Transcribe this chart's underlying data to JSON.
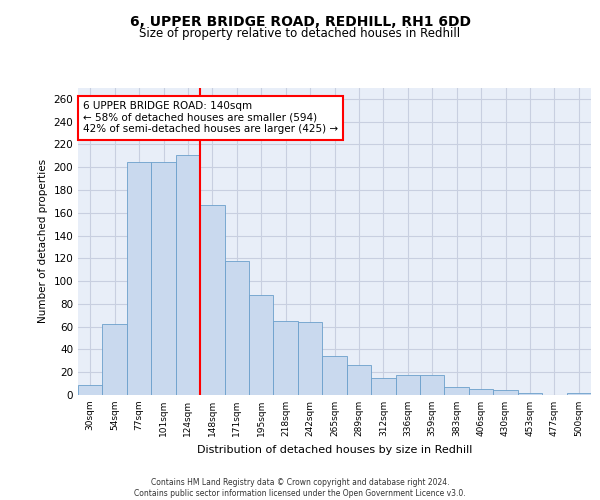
{
  "title": "6, UPPER BRIDGE ROAD, REDHILL, RH1 6DD",
  "subtitle": "Size of property relative to detached houses in Redhill",
  "xlabel": "Distribution of detached houses by size in Redhill",
  "ylabel": "Number of detached properties",
  "bar_color": "#c9d9ee",
  "bar_edge_color": "#6b9fcb",
  "background_color": "#e8eef8",
  "grid_color": "#c8cfe0",
  "vline_color": "red",
  "vline_bin_index": 5,
  "annotation_text": "6 UPPER BRIDGE ROAD: 140sqm\n← 58% of detached houses are smaller (594)\n42% of semi-detached houses are larger (425) →",
  "footer": "Contains HM Land Registry data © Crown copyright and database right 2024.\nContains public sector information licensed under the Open Government Licence v3.0.",
  "categories": [
    "30sqm",
    "54sqm",
    "77sqm",
    "101sqm",
    "124sqm",
    "148sqm",
    "171sqm",
    "195sqm",
    "218sqm",
    "242sqm",
    "265sqm",
    "289sqm",
    "312sqm",
    "336sqm",
    "359sqm",
    "383sqm",
    "406sqm",
    "430sqm",
    "453sqm",
    "477sqm",
    "500sqm"
  ],
  "values": [
    9,
    62,
    205,
    205,
    211,
    167,
    118,
    88,
    65,
    64,
    34,
    26,
    15,
    18,
    18,
    7,
    5,
    4,
    2,
    0,
    2
  ],
  "ylim": [
    0,
    270
  ],
  "yticks": [
    0,
    20,
    40,
    60,
    80,
    100,
    120,
    140,
    160,
    180,
    200,
    220,
    240,
    260
  ]
}
